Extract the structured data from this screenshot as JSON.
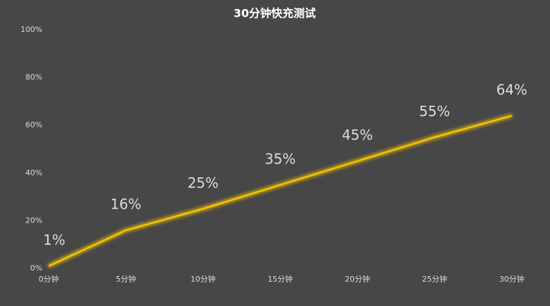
{
  "chart_data": {
    "type": "line",
    "title": "30分钟快充测试",
    "categories": [
      "0分钟",
      "5分钟",
      "10分钟",
      "15分钟",
      "20分钟",
      "25分钟",
      "30分钟"
    ],
    "series": [
      {
        "color": "#f5c400",
        "values": [
          1,
          16,
          25,
          35,
          45,
          55,
          64
        ],
        "value_labels": [
          "1%",
          "16%",
          "25%",
          "35%",
          "45%",
          "55%",
          "64%"
        ]
      }
    ],
    "ylim": [
      0,
      100
    ],
    "yticks": [
      {
        "value": 0,
        "label": "0%"
      },
      {
        "value": 20,
        "label": "20%"
      },
      {
        "value": 40,
        "label": "40%"
      },
      {
        "value": 60,
        "label": "60%"
      },
      {
        "value": 80,
        "label": "80%"
      },
      {
        "value": 100,
        "label": "100%"
      }
    ],
    "grid": false
  }
}
